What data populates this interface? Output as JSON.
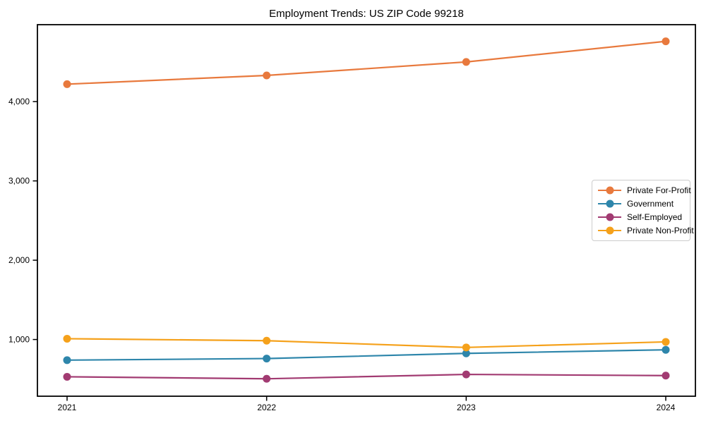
{
  "title": "Employment Trends: US ZIP Code 99218",
  "chart_data": {
    "type": "line",
    "title": "Employment Trends: US ZIP Code 99218",
    "xlabel": "",
    "ylabel": "",
    "x": [
      2021,
      2022,
      2023,
      2024
    ],
    "x_tick_labels": [
      "2021",
      "2022",
      "2023",
      "2024"
    ],
    "y_ticks": [
      1000,
      2000,
      3000,
      4000
    ],
    "y_tick_labels": [
      "1,000",
      "2,000",
      "3,000",
      "4,000"
    ],
    "ylim": [
      285,
      4970
    ],
    "grid": false,
    "legend_position": "center-right",
    "marker": "circle",
    "axis_color": "#000000",
    "background_color": "#ffffff",
    "series": [
      {
        "name": "Private For-Profit",
        "color": "#E8793D",
        "values": [
          4220,
          4330,
          4500,
          4760
        ]
      },
      {
        "name": "Government",
        "color": "#2E86AB",
        "values": [
          740,
          760,
          825,
          870
        ]
      },
      {
        "name": "Self-Employed",
        "color": "#A23B72",
        "values": [
          530,
          505,
          560,
          545
        ]
      },
      {
        "name": "Private Non-Profit",
        "color": "#F5A11B",
        "values": [
          1010,
          985,
          900,
          970
        ]
      }
    ]
  }
}
